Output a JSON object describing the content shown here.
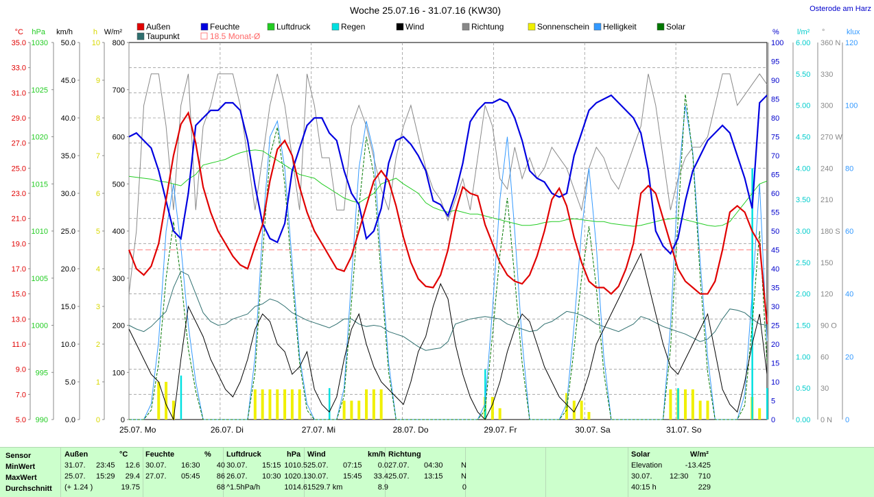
{
  "title": "Woche 25.07.16 - 31.07.16 (KW30)",
  "location": "Osterode am Harz",
  "colors": {
    "aussen": "#e00000",
    "feuchte": "#0000e0",
    "luftdruck": "#22cc22",
    "regen": "#00e0e0",
    "wind": "#000000",
    "richtung": "#888888",
    "sonne": "#f0f000",
    "helligkeit": "#3399ff",
    "solar": "#007700",
    "taupunkt": "#2f6f6f",
    "monat": "#ff8080"
  },
  "legend": [
    {
      "label": "Außen",
      "color": "#e00000"
    },
    {
      "label": "Feuchte",
      "color": "#0000e0"
    },
    {
      "label": "Luftdruck",
      "color": "#22cc22"
    },
    {
      "label": "Regen",
      "color": "#00e0e0"
    },
    {
      "label": "Wind",
      "color": "#000000"
    },
    {
      "label": "Richtung",
      "color": "#888888"
    },
    {
      "label": "Sonnenschein",
      "color": "#f0f000"
    },
    {
      "label": "Helligkeit",
      "color": "#3399ff"
    },
    {
      "label": "Solar",
      "color": "#007700"
    },
    {
      "label": "Taupunkt",
      "color": "#2f6f6f"
    },
    {
      "label": "18.5 Monat-Ø",
      "color": "#ff8080"
    }
  ],
  "chart_data": {
    "type": "line",
    "x_labels": [
      "25.07. Mo",
      "26.07. Di",
      "27.07. Mi",
      "28.07. Do",
      "29.07. Fr",
      "30.07. Sa",
      "31.07. So"
    ],
    "left_axes": [
      {
        "unit": "°C",
        "color": "#e00000",
        "ticks": [
          "35.0",
          "33.0",
          "31.0",
          "29.0",
          "27.0",
          "25.0",
          "23.0",
          "21.0",
          "19.0",
          "17.0",
          "15.0",
          "13.0",
          "11.0",
          "9.0",
          "7.0",
          "5.0"
        ]
      },
      {
        "unit": "hPa",
        "color": "#22cc22",
        "ticks": [
          "1030",
          "1025",
          "1020",
          "1015",
          "1010",
          "1005",
          "1000",
          "995",
          "990"
        ]
      },
      {
        "unit": "km/h",
        "color": "#000000",
        "ticks": [
          "50.0",
          "45.0",
          "40.0",
          "35.0",
          "30.0",
          "25.0",
          "20.0",
          "15.0",
          "10.0",
          "5.0",
          "0.0"
        ]
      },
      {
        "unit": "h",
        "color": "#d8d800",
        "ticks": [
          "10",
          "9",
          "8",
          "7",
          "6",
          "5",
          "4",
          "3",
          "2",
          "1",
          "0"
        ]
      },
      {
        "unit": "W/m²",
        "color": "#000000",
        "ticks": [
          "800",
          "700",
          "600",
          "500",
          "400",
          "300",
          "200",
          "100",
          "0"
        ]
      }
    ],
    "right_axes": [
      {
        "unit": "%",
        "color": "#0000cc",
        "ticks": [
          "100",
          "95",
          "90",
          "85",
          "80",
          "75",
          "70",
          "65",
          "60",
          "55",
          "50",
          "45",
          "40",
          "35",
          "30",
          "25",
          "20",
          "15",
          "10",
          "5",
          "0"
        ]
      },
      {
        "unit": "l/m²",
        "color": "#00cccc",
        "ticks": [
          "6.00",
          "5.50",
          "5.00",
          "4.50",
          "4.00",
          "3.50",
          "3.00",
          "2.50",
          "2.00",
          "1.50",
          "1.00",
          "0.50",
          "0.00"
        ]
      },
      {
        "unit": "°",
        "color": "#888888",
        "ticks": [
          "360 N",
          "330",
          "300",
          "270 W",
          "240",
          "210",
          "180 S",
          "150",
          "120",
          "90 O",
          "60",
          "30",
          "0 N"
        ]
      },
      {
        "unit": "klux",
        "color": "#3399ff",
        "ticks": [
          "120",
          "100",
          "80",
          "60",
          "40",
          "20",
          "0"
        ]
      }
    ],
    "monthly_mean_temp": 18.5,
    "temperature": [
      18.5,
      17.0,
      16.5,
      17.2,
      19.0,
      22.5,
      26.0,
      28.5,
      29.4,
      27.0,
      23.5,
      21.5,
      20.0,
      19.0,
      18.0,
      17.3,
      17.0,
      18.8,
      20.5,
      24.0,
      26.5,
      27.2,
      26.0,
      23.5,
      21.5,
      20.0,
      19.0,
      18.0,
      17.0,
      16.8,
      18.0,
      20.0,
      22.0,
      24.0,
      24.8,
      24.0,
      22.0,
      19.5,
      17.5,
      16.2,
      15.6,
      15.5,
      16.5,
      18.5,
      21.5,
      23.5,
      23.0,
      22.8,
      20.5,
      19.0,
      17.5,
      16.5,
      16.0,
      15.8,
      16.5,
      18.0,
      20.0,
      22.5,
      23.4,
      22.0,
      19.5,
      17.5,
      16.0,
      15.5,
      15.5,
      15.0,
      15.6,
      17.0,
      19.0,
      23.0,
      23.6,
      23.0,
      21.0,
      19.0,
      17.0,
      16.0,
      15.5,
      15.0,
      15.0,
      16.0,
      18.5,
      21.5,
      22.0,
      21.5,
      20.0,
      19.0,
      12.6
    ],
    "humidity": [
      75,
      76,
      74,
      72,
      66,
      58,
      50,
      48,
      60,
      78,
      80,
      82,
      82,
      84,
      84,
      82,
      74,
      62,
      52,
      48,
      47,
      52,
      66,
      72,
      78,
      80,
      80,
      76,
      74,
      66,
      60,
      57,
      48,
      50,
      56,
      68,
      74,
      75,
      73,
      70,
      66,
      58,
      57,
      54,
      60,
      68,
      79,
      82,
      84,
      84,
      85,
      84,
      80,
      74,
      66,
      64,
      63,
      60,
      59,
      60,
      70,
      76,
      82,
      84,
      85,
      86,
      84,
      82,
      80,
      76,
      66,
      50,
      46,
      44,
      48,
      58,
      66,
      70,
      74,
      76,
      78,
      76,
      70,
      64,
      56,
      84,
      86
    ],
    "pressure": [
      1015.8,
      1015.7,
      1015.6,
      1015.5,
      1015.3,
      1015.2,
      1015.0,
      1014.8,
      1015.5,
      1016.0,
      1017.0,
      1017.2,
      1017.4,
      1017.6,
      1018.0,
      1018.3,
      1018.5,
      1018.6,
      1018.5,
      1018.0,
      1017.5,
      1017.0,
      1016.5,
      1016.0,
      1015.8,
      1015.6,
      1015.0,
      1014.5,
      1014.0,
      1013.5,
      1013.2,
      1013.0,
      1013.5,
      1014.0,
      1015.0,
      1015.3,
      1015.6,
      1015.0,
      1014.5,
      1014.0,
      1013.0,
      1012.5,
      1012.2,
      1012.0,
      1012.2,
      1012.0,
      1011.8,
      1011.8,
      1011.6,
      1011.4,
      1011.2,
      1011.0,
      1010.8,
      1010.6,
      1010.6,
      1010.7,
      1010.9,
      1011.0,
      1011.0,
      1011.2,
      1011.3,
      1011.2,
      1011.1,
      1011.0,
      1011.0,
      1010.8,
      1010.7,
      1010.6,
      1010.5,
      1010.6,
      1010.8,
      1011.0,
      1011.2,
      1011.3,
      1011.4,
      1011.2,
      1011.0,
      1010.8,
      1010.6,
      1010.5,
      1010.6,
      1011.0,
      1012.0,
      1013.0,
      1014.0,
      1015.0,
      1015.3
    ],
    "wind": [
      12,
      10,
      8,
      6,
      5,
      2,
      0,
      8,
      15,
      13,
      11,
      8,
      6,
      4,
      3,
      5,
      8,
      12,
      14,
      13,
      10,
      9,
      6,
      7,
      9,
      4,
      2,
      1,
      3,
      8,
      12,
      14,
      10,
      7,
      5,
      4,
      3,
      2,
      5,
      9,
      11,
      15,
      18,
      16,
      10,
      6,
      3,
      1,
      0,
      2,
      5,
      9,
      12,
      14,
      13,
      10,
      7,
      5,
      3,
      2,
      1,
      3,
      6,
      10,
      12,
      14,
      16,
      18,
      20,
      22,
      18,
      14,
      10,
      7,
      6,
      8,
      10,
      12,
      14,
      9,
      4,
      2,
      1,
      5,
      10,
      14,
      6
    ],
    "direction": [
      120,
      180,
      300,
      330,
      330,
      280,
      200,
      300,
      330,
      200,
      280,
      300,
      330,
      330,
      330,
      300,
      250,
      200,
      250,
      300,
      330,
      300,
      250,
      200,
      330,
      300,
      250,
      250,
      200,
      200,
      280,
      300,
      280,
      250,
      220,
      200,
      250,
      280,
      300,
      270,
      240,
      220,
      210,
      190,
      210,
      230,
      200,
      250,
      300,
      280,
      230,
      220,
      260,
      230,
      250,
      230,
      240,
      260,
      250,
      240,
      220,
      200,
      240,
      260,
      250,
      230,
      220,
      240,
      260,
      280,
      330,
      300,
      250,
      200,
      230,
      250,
      260,
      260,
      270,
      300,
      330,
      330,
      300,
      310,
      320,
      330,
      320
    ],
    "sunshine": [
      0,
      0,
      0,
      0,
      1,
      1,
      0.5,
      0,
      0,
      0,
      0,
      0,
      0,
      0,
      0,
      0,
      0,
      0.8,
      0.8,
      0.8,
      0.8,
      0.8,
      0.8,
      0.8,
      0,
      0,
      0,
      0,
      0,
      0.5,
      0.5,
      0.5,
      0.8,
      0.8,
      0.8,
      0,
      0,
      0,
      0,
      0,
      0,
      0,
      0,
      0,
      0,
      0,
      0,
      0,
      0.6,
      0.6,
      0.3,
      0,
      0,
      0,
      0,
      0,
      0,
      0,
      0,
      0.7,
      0.5,
      0.5,
      0.2,
      0,
      0,
      0,
      0,
      0,
      0,
      0,
      0,
      0,
      0,
      0.8,
      0.8,
      0.8,
      0.8,
      0.5,
      0.5,
      0,
      0,
      0,
      0,
      0,
      0.6,
      0.3,
      0
    ],
    "solar": [
      0,
      0,
      0,
      20,
      120,
      300,
      420,
      300,
      150,
      60,
      0,
      0,
      0,
      0,
      0,
      0,
      0,
      100,
      350,
      560,
      620,
      500,
      300,
      120,
      20,
      0,
      0,
      0,
      0,
      50,
      250,
      450,
      600,
      520,
      300,
      100,
      0,
      0,
      0,
      0,
      0,
      0,
      0,
      0,
      0,
      0,
      0,
      0,
      20,
      180,
      350,
      470,
      300,
      120,
      0,
      0,
      0,
      0,
      0,
      20,
      150,
      300,
      410,
      280,
      100,
      0,
      0,
      0,
      0,
      0,
      0,
      0,
      0,
      150,
      420,
      690,
      560,
      300,
      100,
      0,
      0,
      0,
      0,
      30,
      200,
      400,
      120
    ],
    "dewpoint": [
      12.5,
      12.2,
      12.0,
      12.4,
      13.0,
      13.6,
      15.5,
      16.8,
      16.5,
      15.0,
      13.5,
      12.8,
      12.5,
      12.6,
      13.0,
      13.2,
      13.4,
      14.0,
      14.2,
      14.6,
      14.4,
      14.0,
      13.5,
      13.2,
      12.9,
      12.7,
      12.5,
      12.3,
      12.6,
      13.0,
      13.0,
      12.6,
      12.4,
      12.5,
      12.4,
      12.0,
      11.8,
      11.6,
      11.2,
      10.8,
      10.5,
      10.6,
      10.7,
      11.2,
      12.6,
      12.8,
      13.0,
      13.1,
      13.2,
      13.1,
      13.0,
      12.6,
      12.4,
      12.2,
      12.0,
      12.1,
      12.6,
      12.8,
      13.2,
      13.6,
      13.5,
      13.3,
      13.0,
      12.6,
      12.4,
      12.2,
      12.0,
      12.3,
      12.6,
      13.2,
      13.0,
      12.7,
      12.4,
      12.2,
      12.0,
      11.8,
      11.5,
      11.2,
      11.4,
      12.0,
      13.0,
      13.8,
      13.7,
      13.5,
      13.0,
      12.6,
      12.5
    ],
    "brightness": [
      0,
      0,
      0,
      5,
      25,
      60,
      75,
      55,
      30,
      12,
      0,
      0,
      0,
      0,
      0,
      0,
      0,
      20,
      60,
      90,
      95,
      80,
      50,
      20,
      5,
      0,
      0,
      0,
      0,
      10,
      45,
      80,
      95,
      85,
      50,
      18,
      0,
      0,
      0,
      0,
      0,
      0,
      0,
      0,
      0,
      0,
      0,
      0,
      5,
      35,
      70,
      90,
      60,
      25,
      0,
      0,
      0,
      0,
      0,
      5,
      30,
      60,
      80,
      55,
      20,
      0,
      0,
      0,
      0,
      0,
      0,
      0,
      0,
      30,
      75,
      100,
      85,
      50,
      20,
      0,
      0,
      0,
      0,
      8,
      40,
      75,
      25
    ],
    "rain": [
      0,
      0,
      0,
      0,
      0,
      0,
      0,
      0.7,
      0,
      0,
      0,
      0,
      0,
      0,
      0,
      0,
      0,
      0,
      0,
      0,
      0,
      0,
      0,
      0,
      0,
      0,
      0,
      0.5,
      0,
      0,
      0,
      0,
      0,
      0,
      0,
      0,
      0,
      0,
      0,
      0,
      0,
      0,
      0,
      0,
      0,
      0,
      0,
      0,
      0.8,
      0,
      0,
      0,
      0,
      0,
      0,
      0,
      0,
      0,
      0,
      0,
      0,
      0,
      0,
      0,
      0,
      0,
      0,
      0,
      0,
      0,
      0,
      0,
      0,
      0,
      0.5,
      0,
      0,
      0,
      0,
      0,
      0,
      0,
      0,
      0,
      4,
      0,
      0.5
    ]
  },
  "stats": {
    "sensor": {
      "header": "Sensor",
      "rows": [
        "MinWert",
        "MaxWert",
        "Durchschnitt"
      ]
    },
    "aussen": {
      "header": "Außen",
      "unit": "°C",
      "dates": [
        "31.07.",
        "25.07.",
        "(+ 1.24 )"
      ],
      "times": [
        "23:45",
        "15:29",
        ""
      ],
      "values": [
        "12.6",
        "29.4",
        "19.75"
      ]
    },
    "feuchte": {
      "header": "Feuchte",
      "unit": "%",
      "dates": [
        "30.07.",
        "27.07.",
        ""
      ],
      "times": [
        "16:30",
        "05:45",
        ""
      ],
      "values": [
        "40",
        "86",
        "68"
      ]
    },
    "luftdruck": {
      "header": "Luftdruck",
      "unit": "hPa",
      "dates": [
        "30.07.",
        "26.07.",
        "^1.5hPa/h"
      ],
      "times": [
        "15:15",
        "10:30",
        ""
      ],
      "values": [
        "1010.5",
        "1020.1",
        "1014.6"
      ]
    },
    "wind": {
      "header": "Wind",
      "unit": "km/h",
      "dates": [
        "25.07.",
        "30.07.",
        "1529.7 km"
      ],
      "times": [
        "07:15",
        "15:45",
        ""
      ],
      "values": [
        "0.0",
        "33.4",
        "8.9"
      ]
    },
    "richtung": {
      "header": "Richtung",
      "unit": "",
      "dates": [
        "27.07.",
        "25.07.",
        ""
      ],
      "times": [
        "04:30",
        "13:15",
        ""
      ],
      "values": [
        "N",
        "N",
        "0"
      ]
    },
    "solar": {
      "header": "Solar",
      "unit": "W/m²",
      "dates": [
        "Elevation",
        "30.07.",
        "40:15 h"
      ],
      "times": [
        "",
        "12:30",
        ""
      ],
      "values": [
        "-13.425",
        "710",
        "229"
      ]
    }
  }
}
